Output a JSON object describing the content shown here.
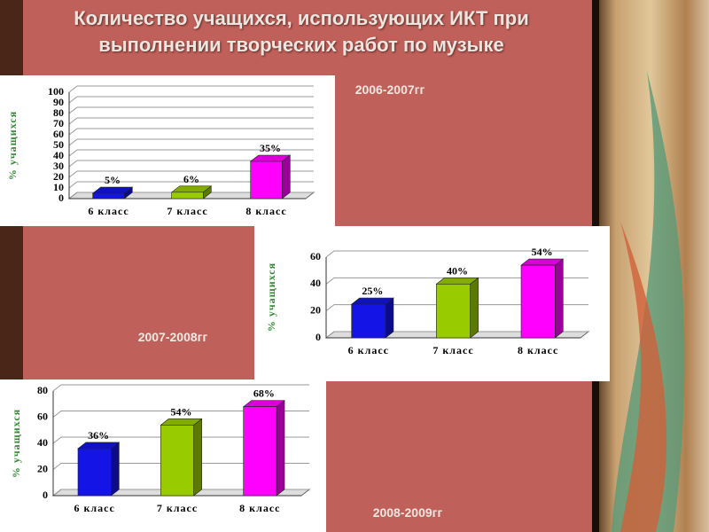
{
  "title": "Количество учащихся, использующих ИКТ при выполнении творческих работ по музыке",
  "chart_data": [
    {
      "type": "bar",
      "title": "2006-2007гг",
      "y_label": "% учащихся",
      "categories": [
        "6 класс",
        "7 класс",
        "8 класс"
      ],
      "values": [
        5,
        6,
        35
      ],
      "value_labels": [
        "5%",
        "6%",
        "35%"
      ],
      "colors": [
        "#1414e6",
        "#99cc00",
        "#ff00ff"
      ],
      "ylim": [
        0,
        100
      ],
      "yticks": [
        0,
        10,
        20,
        30,
        40,
        50,
        60,
        70,
        80,
        90,
        100
      ],
      "grid": true
    },
    {
      "type": "bar",
      "title": "2007-2008гг",
      "y_label": "% учащихся",
      "categories": [
        "6 класс",
        "7 класс",
        "8 класс"
      ],
      "values": [
        25,
        40,
        54
      ],
      "value_labels": [
        "25%",
        "40%",
        "54%"
      ],
      "colors": [
        "#1414e6",
        "#99cc00",
        "#ff00ff"
      ],
      "ylim": [
        0,
        60
      ],
      "yticks": [
        0,
        20,
        40,
        60
      ],
      "grid": true
    },
    {
      "type": "bar",
      "title": "2008-2009гг",
      "y_label": "% учащихся",
      "categories": [
        "6 класс",
        "7 класс",
        "8 класс"
      ],
      "values": [
        36,
        54,
        68
      ],
      "value_labels": [
        "36%",
        "54%",
        "68%"
      ],
      "colors": [
        "#1414e6",
        "#99cc00",
        "#ff00ff"
      ],
      "ylim": [
        0,
        80
      ],
      "yticks": [
        0,
        20,
        40,
        60,
        80
      ],
      "grid": true
    }
  ]
}
